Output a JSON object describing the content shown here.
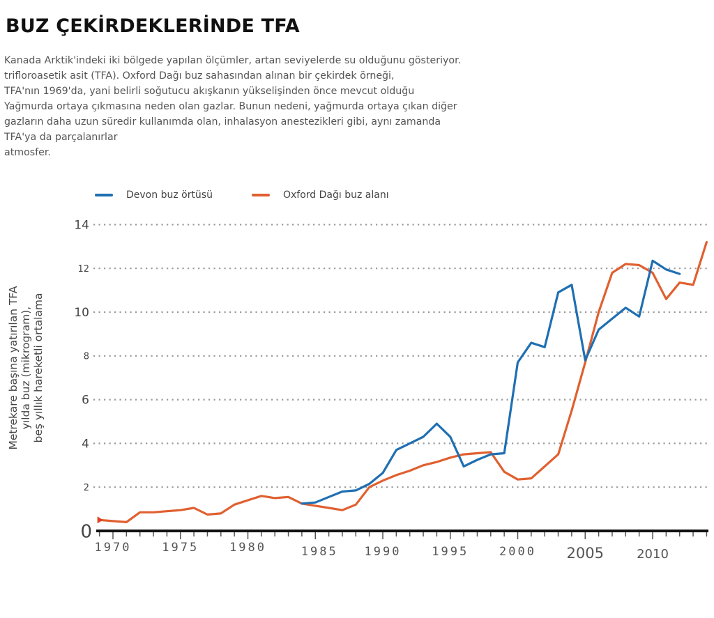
{
  "title": "BUZ ÇEKİRDEKLERİNDE TFA",
  "description_lines": [
    "Kanada Arktik'indeki iki bölgede yapılan ölçümler, artan seviyelerde su olduğunu gösteriyor.",
    "trifloroasetik asit (TFA). Oxford Dağı buz sahasından alınan bir çekirdek örneği,",
    "TFA'nın 1969'da, yani belirli soğutucu akışkanın yükselişinden önce mevcut olduğu",
    "Yağmurda ortaya çıkmasına neden olan gazlar. Bunun nedeni, yağmurda ortaya çıkan diğer",
    "gazların daha uzun süredir kullanımda olan, inhalasyon anestezikleri gibi, aynı zamanda",
    "TFA'ya da parçalanırlar",
    "atmosfer."
  ],
  "chart_data": {
    "type": "line",
    "title": "BUZ ÇEKİRDEKLERİNDE TFA",
    "xlabel": "",
    "ylabel_lines": [
      "Metrekare başına yatırılan TFA",
      "yılda buz (mikrogram),",
      "beş yıllık hareketli ortalama"
    ],
    "xlim": [
      1969,
      2014
    ],
    "ylim": [
      0,
      14
    ],
    "yticks": [
      0,
      2,
      4,
      6,
      8,
      10,
      12,
      14
    ],
    "xticks": [
      1970,
      1975,
      1980,
      1985,
      1990,
      1995,
      2000,
      2005,
      2010
    ],
    "grid": "horizontal-dotted",
    "legend_position": "top-left",
    "series": [
      {
        "name": "Devon buz örtüsü",
        "color": "#1f6fb2",
        "x": [
          1984,
          1985,
          1986,
          1987,
          1988,
          1989,
          1990,
          1991,
          1992,
          1993,
          1994,
          1995,
          1996,
          1997,
          1998,
          1999,
          2000,
          2001,
          2002,
          2003,
          2004,
          2005,
          2006,
          2007,
          2008,
          2009,
          2010,
          2011,
          2012
        ],
        "values": [
          1.25,
          1.3,
          1.55,
          1.8,
          1.85,
          2.15,
          2.65,
          3.7,
          4.0,
          4.3,
          4.9,
          4.3,
          2.95,
          3.25,
          3.5,
          3.55,
          7.7,
          8.6,
          8.4,
          10.9,
          11.25,
          7.8,
          9.2,
          9.7,
          10.2,
          9.8,
          12.35,
          11.95,
          11.75
        ]
      },
      {
        "name": "Oxford Dağı buz alanı",
        "color": "#e06030",
        "x": [
          1969,
          1970,
          1971,
          1972,
          1973,
          1974,
          1975,
          1976,
          1977,
          1978,
          1979,
          1980,
          1981,
          1982,
          1983,
          1984,
          1985,
          1986,
          1987,
          1988,
          1989,
          1990,
          1991,
          1992,
          1993,
          1994,
          1995,
          1996,
          1997,
          1998,
          1999,
          2000,
          2001,
          2002,
          2003,
          2004,
          2005,
          2006,
          2007,
          2008,
          2009,
          2010,
          2011,
          2012,
          2013,
          2014
        ],
        "values": [
          0.5,
          0.45,
          0.4,
          0.85,
          0.85,
          0.9,
          0.95,
          1.05,
          0.75,
          0.8,
          1.2,
          1.4,
          1.6,
          1.5,
          1.55,
          1.25,
          1.15,
          1.05,
          0.95,
          1.2,
          2.0,
          2.3,
          2.55,
          2.75,
          3.0,
          3.15,
          3.35,
          3.5,
          3.55,
          3.6,
          2.7,
          2.35,
          2.4,
          2.95,
          3.5,
          5.5,
          7.7,
          10.0,
          11.8,
          12.2,
          12.15,
          11.8,
          10.6,
          11.35,
          11.25,
          13.2
        ]
      }
    ]
  }
}
